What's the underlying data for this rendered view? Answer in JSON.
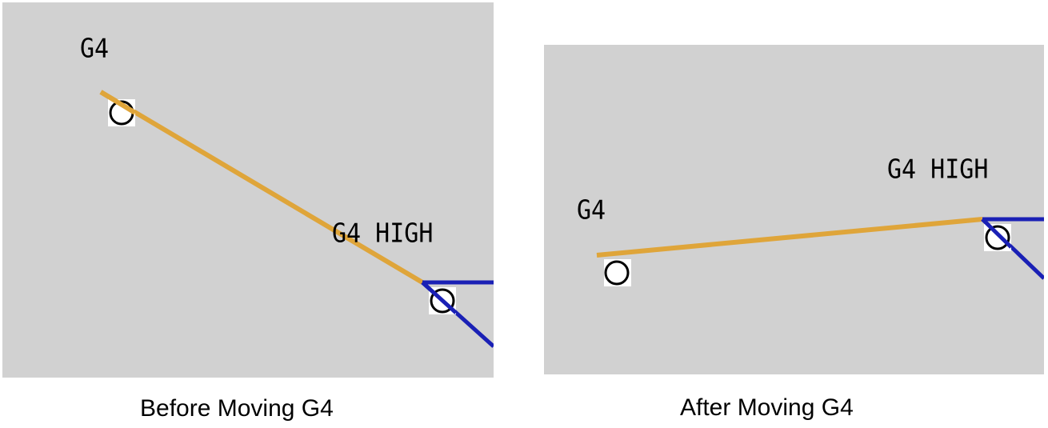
{
  "colors": {
    "background": "#d1d1d1",
    "segment_orange": "#dfa53a",
    "segment_blue": "#1a20b5",
    "marker_outline": "#000000",
    "marker_fill": "#ffffff"
  },
  "before": {
    "caption": "Before Moving G4",
    "point_label": "G4",
    "high_label": "G4 HIGH"
  },
  "after": {
    "caption": "After Moving G4",
    "point_label": "G4",
    "high_label": "G4 HIGH"
  }
}
